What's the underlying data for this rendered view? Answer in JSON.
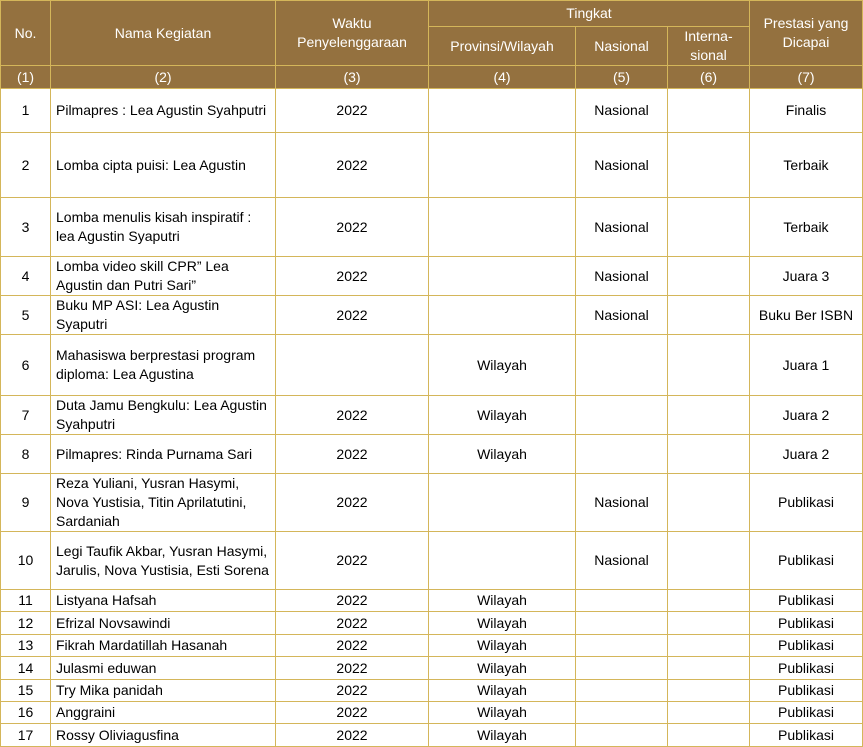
{
  "table": {
    "header": {
      "no": "No.",
      "nama": "Nama Kegiatan",
      "waktu": "Waktu Penyelenggaraan",
      "tingkat": "Tingkat",
      "provinsi": "Provinsi/Wilayah",
      "nasional": "Nasional",
      "internasional": "Interna-sional",
      "prestasi": "Prestasi yang Dicapai"
    },
    "numbers": [
      "(1)",
      "(2)",
      "(3)",
      "(4)",
      "(5)",
      "(6)",
      "(7)"
    ],
    "rows": [
      [
        "1",
        "Pilmapres : Lea Agustin Syahputri",
        "2022",
        null,
        "Nasional",
        null,
        "Finalis"
      ],
      [
        "2",
        "Lomba cipta puisi: Lea Agustin",
        "2022",
        null,
        "Nasional",
        null,
        "Terbaik"
      ],
      [
        "3",
        "Lomba menulis kisah inspiratif : lea Agustin Syaputri",
        "2022",
        null,
        "Nasional",
        null,
        "Terbaik"
      ],
      [
        "4",
        "Lomba video skill CPR” Lea Agustin dan Putri Sari”",
        "2022",
        null,
        "Nasional",
        null,
        "Juara 3"
      ],
      [
        "5",
        "Buku MP ASI: Lea Agustin Syaputri",
        "2022",
        null,
        "Nasional",
        null,
        "Buku Ber ISBN"
      ],
      [
        "6",
        "Mahasiswa berprestasi program diploma: Lea Agustina",
        null,
        "Wilayah",
        null,
        null,
        "Juara 1"
      ],
      [
        "7",
        "Duta Jamu Bengkulu: Lea Agustin Syahputri",
        "2022",
        "Wilayah",
        null,
        null,
        "Juara 2"
      ],
      [
        "8",
        "Pilmapres: Rinda Purnama Sari",
        "2022",
        "Wilayah",
        null,
        null,
        "Juara 2"
      ],
      [
        "9",
        "Reza Yuliani, Yusran Hasymi, Nova Yustisia, Titin Aprilatutini, Sardaniah",
        "2022",
        null,
        "Nasional",
        null,
        "Publikasi"
      ],
      [
        "10",
        "Legi Taufik Akbar, Yusran Hasymi, Jarulis, Nova Yustisia, Esti Sorena",
        "2022",
        null,
        "Nasional",
        null,
        "Publikasi"
      ],
      [
        "11",
        "Listyana Hafsah",
        "2022",
        "Wilayah",
        null,
        null,
        "Publikasi"
      ],
      [
        "12",
        "Efrizal Novsawindi",
        "2022",
        "Wilayah",
        null,
        null,
        "Publikasi"
      ],
      [
        "13",
        "Fikrah Mardatillah Hasanah",
        "2022",
        "Wilayah",
        null,
        null,
        "Publikasi"
      ],
      [
        "14",
        "Julasmi eduwan",
        "2022",
        "Wilayah",
        null,
        null,
        "Publikasi"
      ],
      [
        "15",
        "Try Mika panidah",
        "2022",
        "Wilayah",
        null,
        null,
        "Publikasi"
      ],
      [
        "16",
        "Anggraini",
        "2022",
        "Wilayah",
        null,
        null,
        "Publikasi"
      ],
      [
        "17",
        "Rossy Oliviagusfina",
        "2022",
        "Wilayah",
        null,
        null,
        "Publikasi"
      ]
    ]
  }
}
